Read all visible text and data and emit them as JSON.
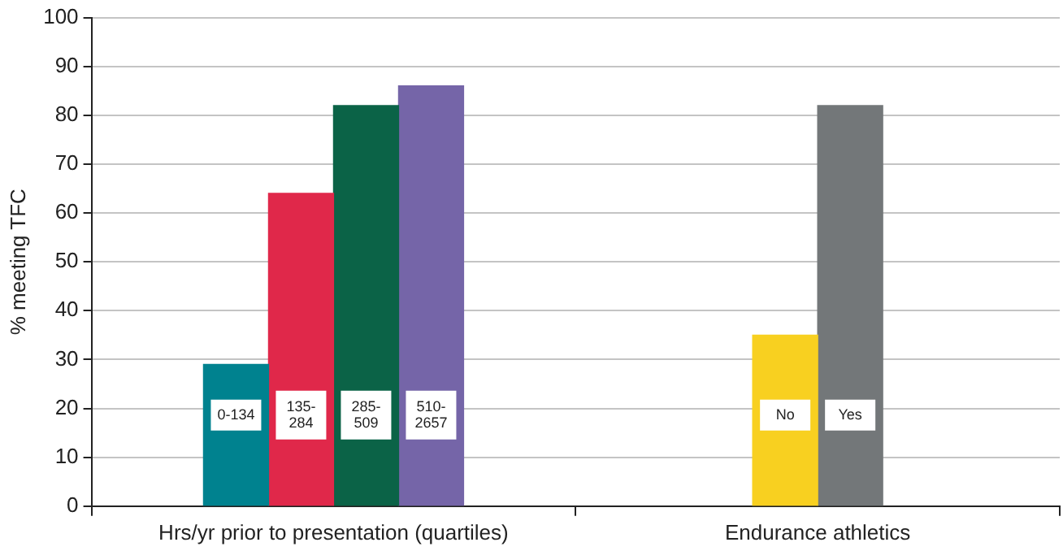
{
  "chart_data": {
    "type": "bar",
    "ylabel": "% meeting TFC",
    "categories": [
      "Hrs/yr prior to presentation (quartiles)",
      "Endurance athletics"
    ],
    "series": [
      {
        "name": "0-134",
        "color": "#00828f",
        "values": [
          29,
          null
        ]
      },
      {
        "name": "135-284",
        "color": "#e0284a",
        "values": [
          64,
          null
        ]
      },
      {
        "name": "285-509",
        "color": "#0b6347",
        "values": [
          82,
          null
        ]
      },
      {
        "name": "510-2657",
        "color": "#7565a8",
        "values": [
          86,
          null
        ]
      },
      {
        "name": "No",
        "color": "#f8d020",
        "values": [
          null,
          35
        ]
      },
      {
        "name": "Yes",
        "color": "#737779",
        "values": [
          null,
          82
        ]
      }
    ],
    "ylim": [
      0,
      100
    ],
    "yticks": [
      0,
      10,
      20,
      30,
      40,
      50,
      60,
      70,
      80,
      90,
      100
    ],
    "grid": "y",
    "legend": false
  }
}
